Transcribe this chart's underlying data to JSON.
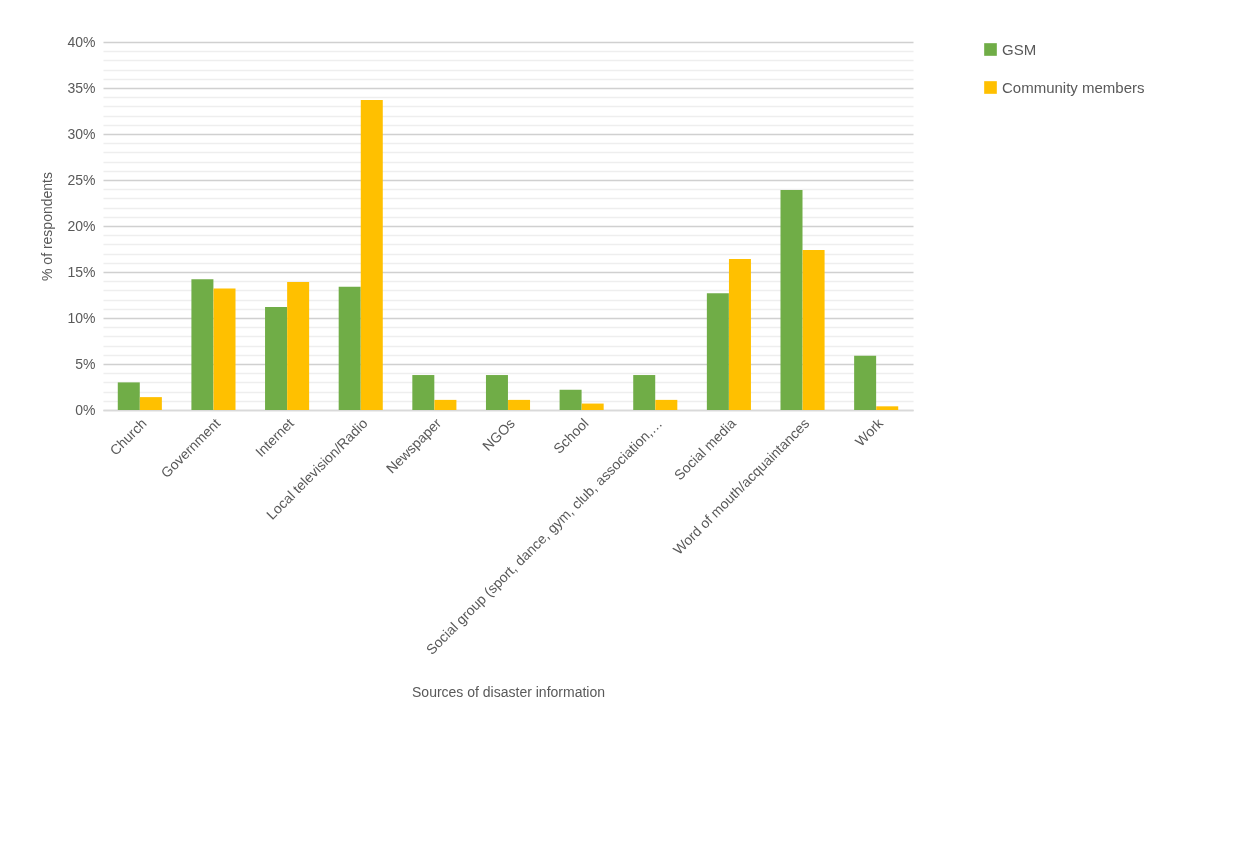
{
  "chart_data": {
    "type": "bar",
    "xlabel": "Sources of disaster information",
    "ylabel": "% of respondents",
    "categories": [
      "Church",
      "Government",
      "Internet",
      "Local television/Radio",
      "Newspaper",
      "NGOs",
      "School",
      "Social group (sport, dance, gym, club, association,…",
      "Social media",
      "Word of mouth/acquaintances",
      "Work"
    ],
    "series": [
      {
        "name": "GSM",
        "color": "#70ad47",
        "values": [
          3.0,
          14.2,
          11.2,
          13.4,
          3.8,
          3.8,
          2.2,
          3.8,
          12.7,
          23.9,
          5.9
        ]
      },
      {
        "name": "Community members",
        "color": "#ffc000",
        "values": [
          1.4,
          13.2,
          13.9,
          33.7,
          1.1,
          1.1,
          0.7,
          1.1,
          16.4,
          17.4,
          0.4
        ]
      }
    ],
    "ylim": [
      0,
      40
    ],
    "yticks": [
      {
        "value": 0,
        "label": "0%"
      },
      {
        "value": 1,
        "label": null
      },
      {
        "value": 2,
        "label": null
      },
      {
        "value": 3,
        "label": null
      },
      {
        "value": 4,
        "label": null
      },
      {
        "value": 5,
        "label": "5%"
      },
      {
        "value": 6,
        "label": null
      },
      {
        "value": 7,
        "label": null
      },
      {
        "value": 8,
        "label": null
      },
      {
        "value": 9,
        "label": null
      },
      {
        "value": 10,
        "label": "10%"
      },
      {
        "value": 11,
        "label": null
      },
      {
        "value": 12,
        "label": null
      },
      {
        "value": 13,
        "label": null
      },
      {
        "value": 14,
        "label": null
      },
      {
        "value": 15,
        "label": "15%"
      },
      {
        "value": 16,
        "label": null
      },
      {
        "value": 17,
        "label": null
      },
      {
        "value": 18,
        "label": null
      },
      {
        "value": 19,
        "label": null
      },
      {
        "value": 20,
        "label": "20%"
      },
      {
        "value": 21,
        "label": null
      },
      {
        "value": 22,
        "label": null
      },
      {
        "value": 23,
        "label": null
      },
      {
        "value": 24,
        "label": null
      },
      {
        "value": 25,
        "label": "25%"
      },
      {
        "value": 26,
        "label": null
      },
      {
        "value": 27,
        "label": null
      },
      {
        "value": 28,
        "label": null
      },
      {
        "value": 29,
        "label": null
      },
      {
        "value": 30,
        "label": "30%"
      },
      {
        "value": 31,
        "label": null
      },
      {
        "value": 32,
        "label": null
      },
      {
        "value": 33,
        "label": null
      },
      {
        "value": 34,
        "label": null
      },
      {
        "value": 35,
        "label": "35%"
      },
      {
        "value": 36,
        "label": null
      },
      {
        "value": 37,
        "label": null
      },
      {
        "value": 38,
        "label": null
      },
      {
        "value": 39,
        "label": null
      },
      {
        "value": 40,
        "label": "40%"
      }
    ],
    "grid": "y",
    "legend": "right"
  }
}
